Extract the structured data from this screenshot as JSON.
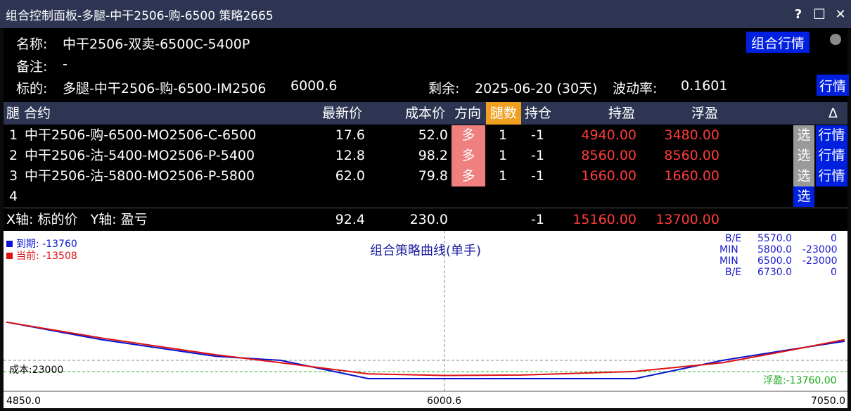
{
  "window": {
    "title": "组合控制面板-多腿-中干2506-购-6500 策略2665",
    "controls": [
      "?",
      "☐",
      "✕"
    ]
  },
  "info": {
    "name_label": "名称:",
    "name_value": "中干2506-双卖-6500C-5400P",
    "note_label": "备注:",
    "note_value": "-",
    "underlying_label": "标的:",
    "underlying_value": "多腿-中干2506-购-6500-IM2506",
    "underlying_price": "6000.6",
    "remain_label": "剩余:",
    "remain_value": "2025-06-20 (30天)",
    "vol_label": "波动率:",
    "vol_value": "0.1601",
    "combo_quote_button": "组合行情",
    "quote_button": "行情"
  },
  "table": {
    "headers": {
      "leg_contract": "腿 合约",
      "last": "最新价",
      "cost": "成本价",
      "direction": "方向",
      "legs": "腿数",
      "position": "持仓",
      "hold_pnl": "持盈",
      "float_pnl": "浮盈",
      "delta": "Δ"
    },
    "rows": [
      {
        "idx": "1",
        "contract": "中干2506-购-6500-MO2506-C-6500",
        "last": "17.6",
        "cost": "52.0",
        "dir": "多",
        "legs": "1",
        "pos": "-1",
        "hold": "4940.00",
        "float": "3480.00",
        "sel": "选",
        "quote": "行情"
      },
      {
        "idx": "2",
        "contract": "中干2506-沽-5400-MO2506-P-5400",
        "last": "12.8",
        "cost": "98.2",
        "dir": "多",
        "legs": "1",
        "pos": "-1",
        "hold": "8560.00",
        "float": "8560.00",
        "sel": "选",
        "quote": "行情"
      },
      {
        "idx": "3",
        "contract": "中干2506-沽-5800-MO2506-P-5800",
        "last": "62.0",
        "cost": "79.8",
        "dir": "多",
        "legs": "1",
        "pos": "-1",
        "hold": "1660.00",
        "float": "1660.00",
        "sel": "选",
        "quote": "行情"
      },
      {
        "idx": "4",
        "sel": "选"
      }
    ]
  },
  "summary": {
    "axis_text": "X轴: 标的价   Y轴: 盈亏",
    "last": "92.4",
    "cost": "230.0",
    "pos": "-1",
    "hold": "15160.00",
    "float": "13700.00"
  },
  "chart": {
    "title": "组合策略曲线(单手)",
    "legend_expiry": "到期: -13760",
    "legend_current": "当前: -13508",
    "annotations": [
      {
        "label": "B/E",
        "x": "5570.0",
        "y": "0"
      },
      {
        "label": "MIN",
        "x": "5800.0",
        "y": "-23000"
      },
      {
        "label": "MIN",
        "x": "6500.0",
        "y": "-23000"
      },
      {
        "label": "B/E",
        "x": "6730.0",
        "y": "0"
      }
    ],
    "cost_label": "成本:23000",
    "float_label": "浮盈:-13760.00",
    "x_min_label": "4850.0",
    "x_mid_label": "6000.6",
    "x_max_label": "7050.0",
    "colors": {
      "expiry": "#0a14d0",
      "current": "#dd1111",
      "cost_line": "#22bb22"
    }
  },
  "chart_data": {
    "type": "line",
    "title": "组合策略曲线(单手)",
    "xlabel": "标的价",
    "ylabel": "盈亏",
    "x_range": [
      4850.0,
      7050.0
    ],
    "series": [
      {
        "name": "到期",
        "x": [
          4850,
          5100,
          5400,
          5570,
          5800,
          6000,
          6200,
          6500,
          6730,
          6900,
          7050
        ],
        "values": [
          48000,
          26000,
          5000,
          0,
          -23000,
          -23000,
          -23000,
          -23000,
          0,
          13000,
          24000
        ]
      },
      {
        "name": "当前",
        "x": [
          4850,
          5100,
          5400,
          5570,
          5800,
          6000,
          6200,
          6500,
          6730,
          6900,
          7050
        ],
        "values": [
          48000,
          28000,
          7000,
          -3000,
          -17000,
          -19000,
          -18500,
          -14000,
          -3000,
          12000,
          26000
        ]
      }
    ],
    "reference_lines": [
      {
        "label": "成本:23000",
        "value": 23000
      }
    ]
  }
}
